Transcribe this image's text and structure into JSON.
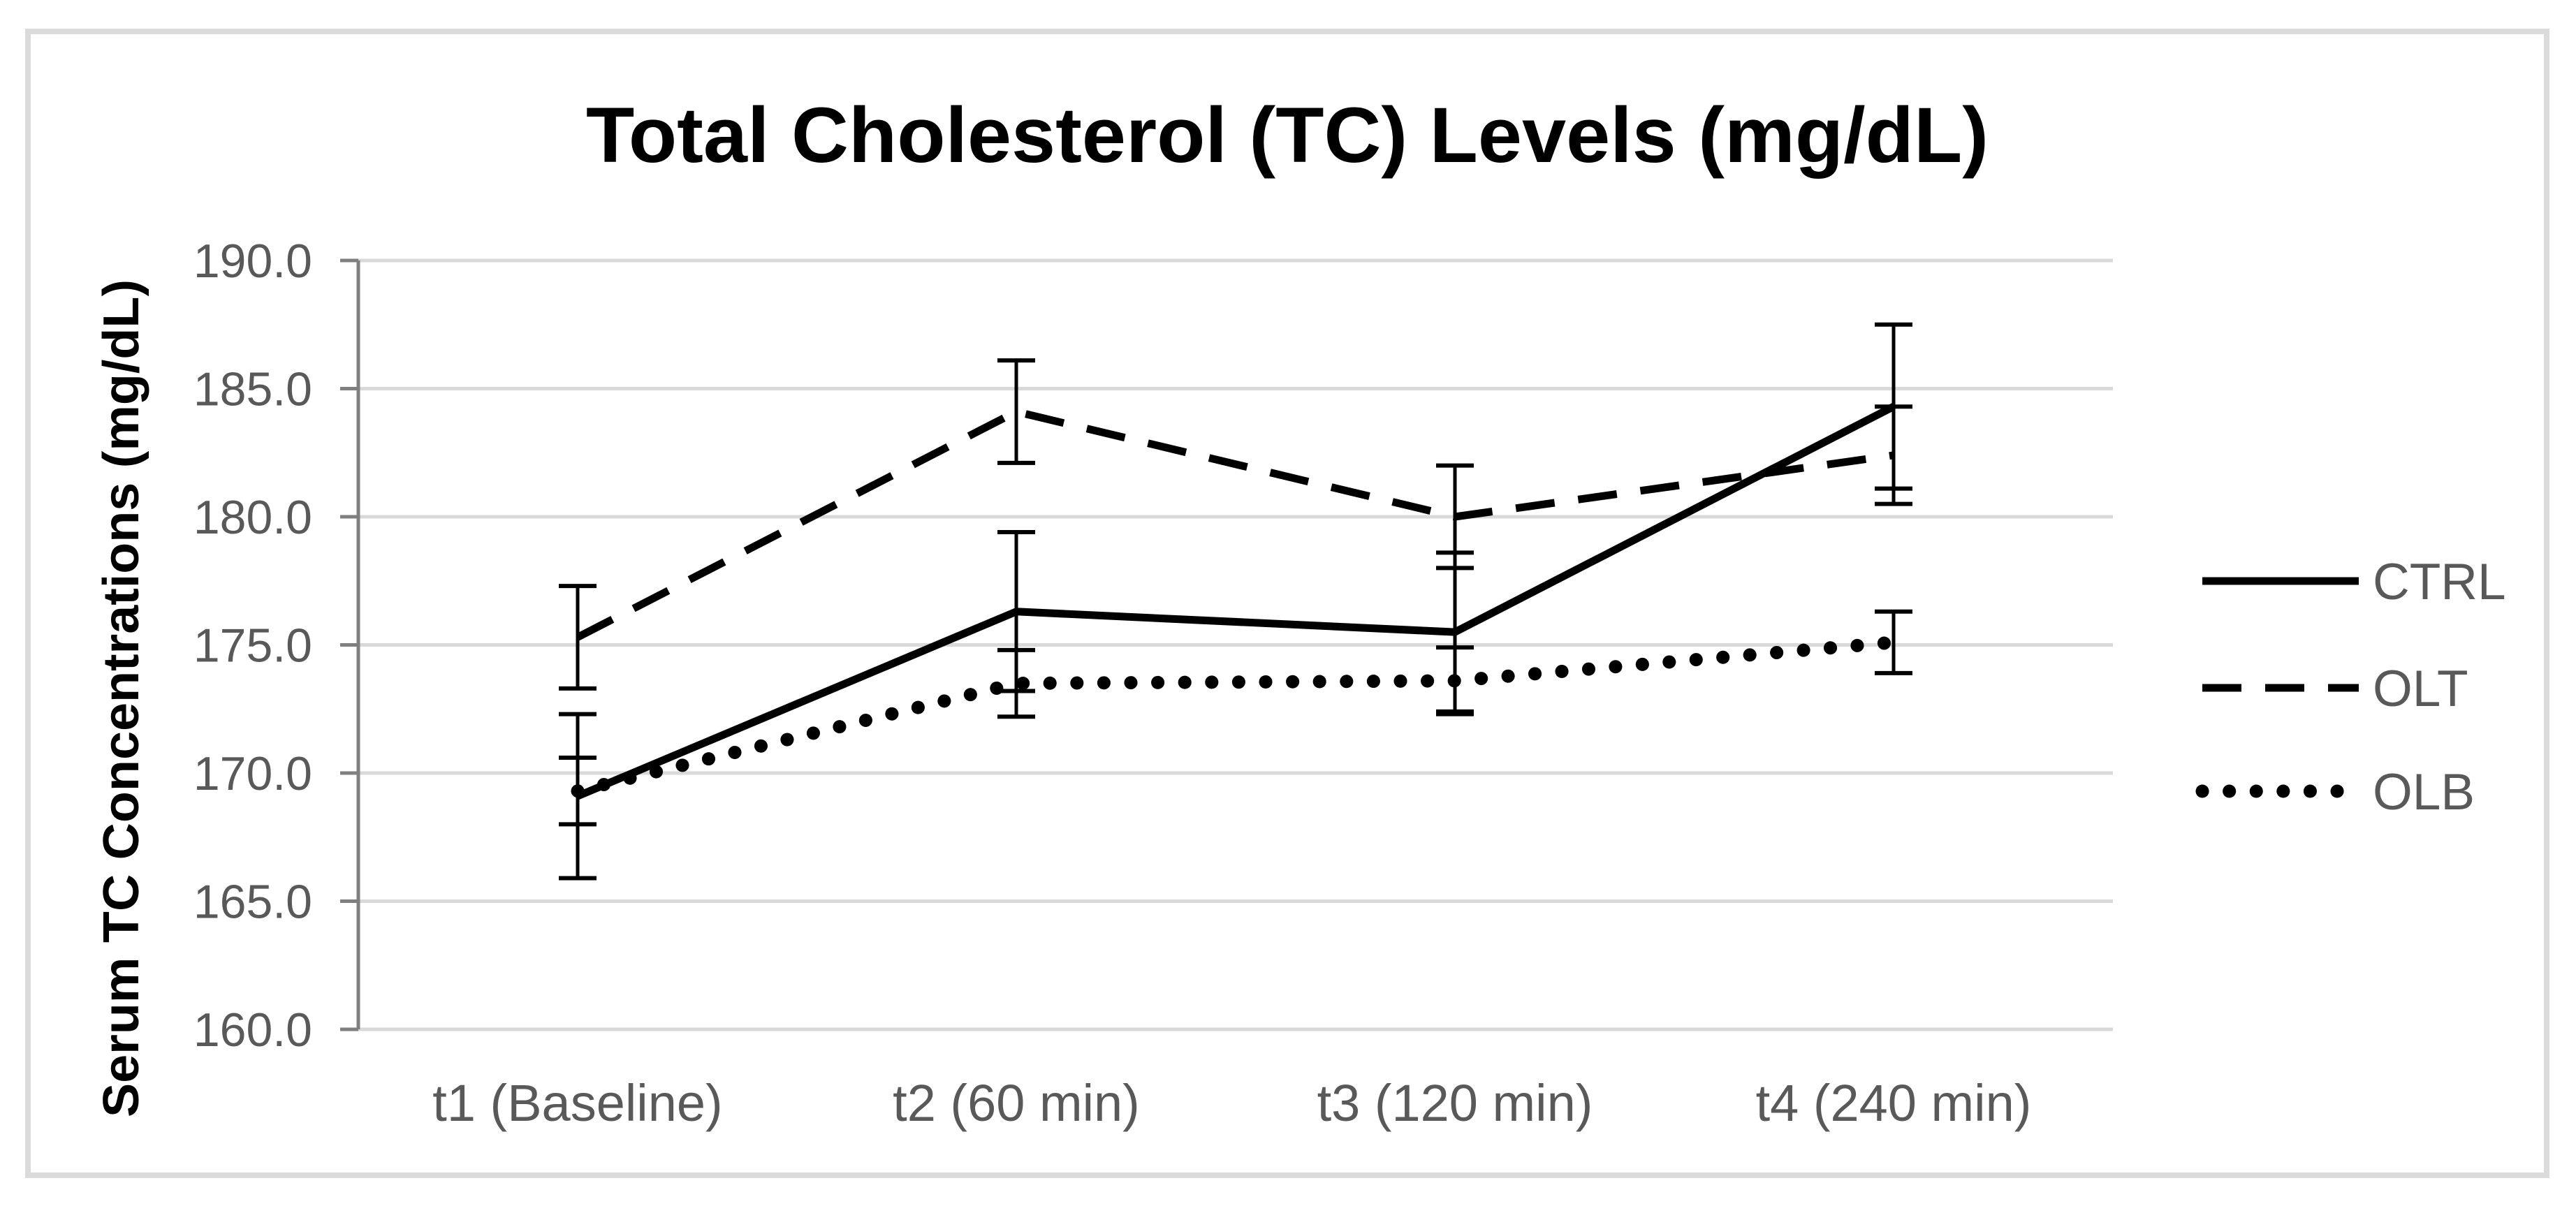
{
  "chart_data": {
    "type": "line",
    "title": "Total Cholesterol (TC) Levels (mg/dL)",
    "ylabel": "Serum TC Concentrations (mg/dL)",
    "xlabel": "",
    "categories": [
      "t1 (Baseline)",
      "t2 (60 min)",
      "t3 (120 min)",
      "t4 (240 min)"
    ],
    "series": [
      {
        "name": "CTRL",
        "style": "solid",
        "values": [
          169.1,
          176.3,
          175.5,
          184.3
        ],
        "error_bars": [
          3.2,
          3.1,
          3.1,
          3.2
        ]
      },
      {
        "name": "OLT",
        "style": "dashed",
        "values": [
          175.3,
          184.1,
          180.0,
          182.4
        ],
        "error_bars": [
          2.0,
          2.0,
          2.0,
          1.9
        ]
      },
      {
        "name": "OLB",
        "style": "dotted",
        "values": [
          169.3,
          173.5,
          173.6,
          175.1
        ],
        "error_bars": [
          1.3,
          1.3,
          1.3,
          1.2
        ]
      }
    ],
    "y_axis": {
      "min": 160,
      "max": 190,
      "step": 5,
      "tick_labels": [
        "190.0",
        "185.0",
        "180.0",
        "175.0",
        "170.0",
        "165.0",
        "160.0"
      ]
    },
    "grid": true,
    "legend_position": "right",
    "legend_entries": [
      "CTRL",
      "OLT",
      "OLB"
    ],
    "colors": {
      "line": "#000000",
      "title_text": "#000000",
      "tick_text": "#595959",
      "legend_text": "#595959",
      "gridline": "#D9D9D9",
      "axis_line": "#7F7F7F",
      "frame_border": "#DBDBDB",
      "background": "#FFFFFF"
    }
  }
}
